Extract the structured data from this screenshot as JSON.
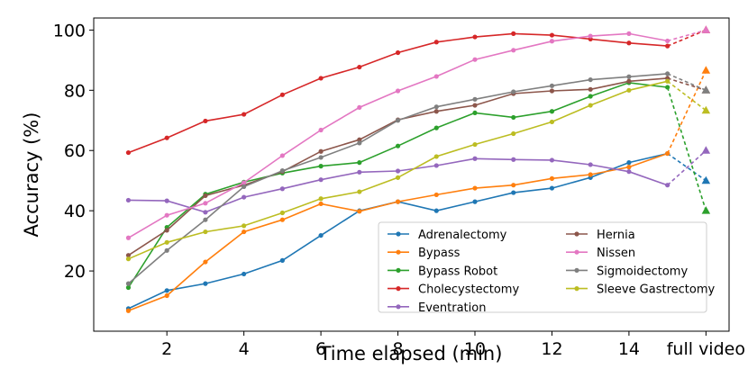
{
  "chart_data": {
    "type": "line",
    "xlabel": "Time elapsed (min)",
    "ylabel": "Accuracy (%)",
    "x": [
      1,
      2,
      3,
      4,
      5,
      6,
      7,
      8,
      9,
      10,
      11,
      12,
      13,
      14,
      15
    ],
    "final_label": "full video",
    "xlim": [
      0.1,
      16.6
    ],
    "ylim": [
      0,
      104
    ],
    "xticks": [
      2,
      4,
      6,
      8,
      10,
      12,
      14
    ],
    "xtick_labels": [
      "2",
      "4",
      "6",
      "8",
      "10",
      "12",
      "14"
    ],
    "yticks": [
      20,
      40,
      60,
      80,
      100
    ],
    "ytick_labels": [
      "20",
      "40",
      "60",
      "80",
      "100"
    ],
    "legend_position": "lower-right",
    "series": [
      {
        "name": "Adrenalectomy",
        "color": "#1f77b4",
        "values": [
          7.5,
          13.5,
          15.8,
          19,
          23.5,
          31.8,
          40,
          43,
          40,
          43,
          46,
          47.5,
          51,
          56,
          59
        ],
        "full_video": 50
      },
      {
        "name": "Bypass",
        "color": "#ff7f0e",
        "values": [
          6.8,
          11.8,
          23,
          33,
          37,
          42.3,
          39.8,
          43,
          45.3,
          47.5,
          48.5,
          50.7,
          52,
          54.5,
          59
        ],
        "full_video": 86.6
      },
      {
        "name": "Bypass Robot",
        "color": "#2ca02c",
        "values": [
          14.5,
          34.5,
          45.5,
          49.5,
          52.5,
          54.8,
          56,
          61.5,
          67.5,
          72.5,
          71,
          73,
          78,
          82.5,
          81
        ],
        "full_video": 40
      },
      {
        "name": "Cholecystectomy",
        "color": "#d62728",
        "values": [
          59.3,
          64.2,
          69.8,
          72,
          78.5,
          84,
          87.7,
          92.5,
          96,
          97.7,
          98.8,
          98.3,
          97,
          95.7,
          94.7
        ],
        "full_video": 100
      },
      {
        "name": "Eventration",
        "color": "#9467bd",
        "values": [
          43.5,
          43.3,
          39.5,
          44.5,
          47.3,
          50.3,
          52.8,
          53.2,
          55,
          57.3,
          57,
          56.8,
          55.3,
          53,
          48.5
        ],
        "full_video": 60
      },
      {
        "name": "Hernia",
        "color": "#8c564b",
        "values": [
          25.2,
          33.5,
          45,
          48.5,
          53,
          59.7,
          63.6,
          70.2,
          73,
          75,
          78.9,
          79.8,
          80.3,
          83,
          84
        ],
        "full_video": 80
      },
      {
        "name": "Nissen",
        "color": "#e377c2",
        "values": [
          31,
          38.5,
          42.5,
          49.3,
          58.3,
          66.8,
          74.3,
          79.8,
          84.6,
          90.2,
          93.3,
          96.3,
          98,
          98.8,
          96.4
        ],
        "full_video": 100
      },
      {
        "name": "Sigmoidectomy",
        "color": "#7f7f7f",
        "values": [
          15.8,
          26.8,
          37,
          48,
          53.3,
          57.7,
          62.5,
          70,
          74.5,
          77,
          79.5,
          81.5,
          83.5,
          84.5,
          85.5
        ],
        "full_video": 80
      },
      {
        "name": "Sleeve Gastrectomy",
        "color": "#bcbd22",
        "values": [
          24,
          29.5,
          33,
          35,
          39.3,
          44,
          46.3,
          51,
          58,
          62,
          65.6,
          69.5,
          75,
          80,
          83
        ],
        "full_video": 73.3
      }
    ]
  }
}
